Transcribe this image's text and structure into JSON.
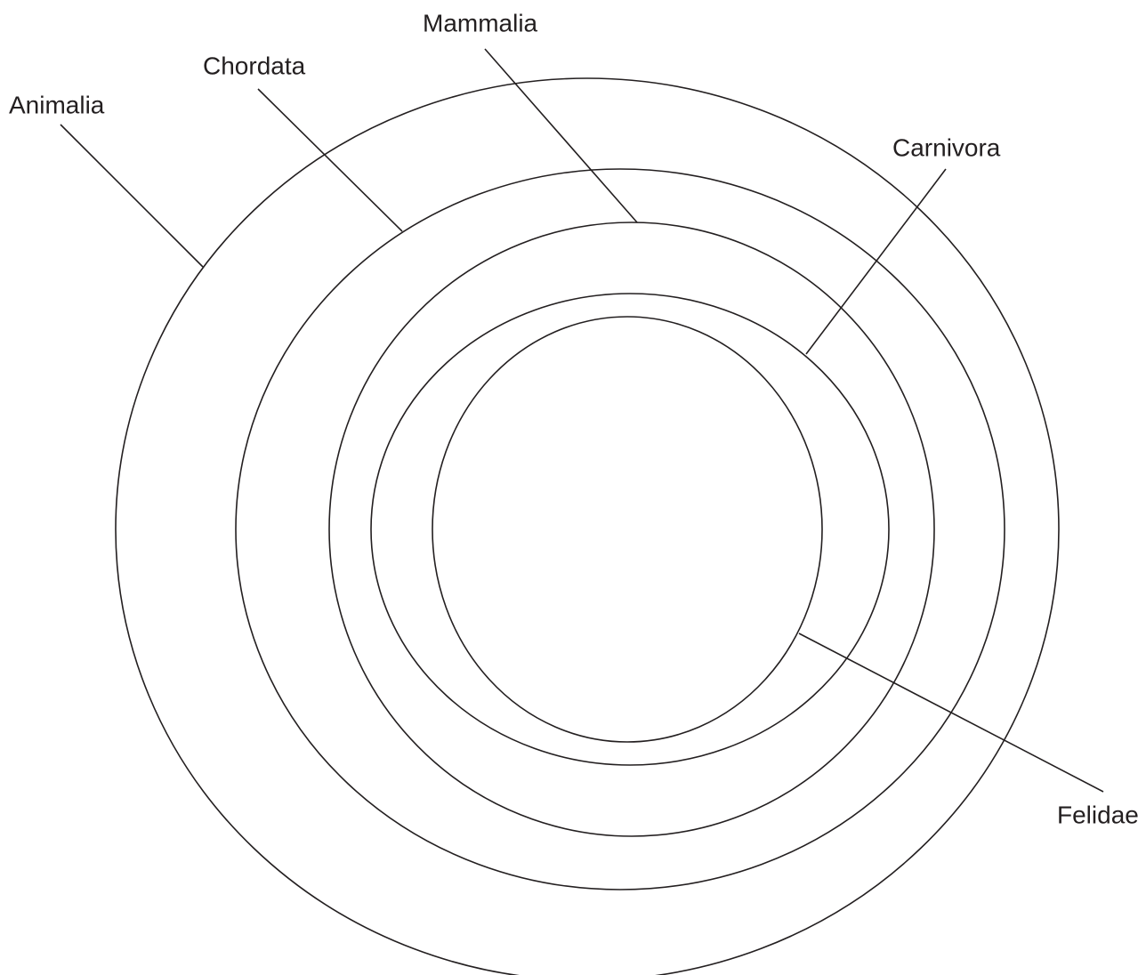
{
  "nodes": [
    {
      "label": "Animalia"
    },
    {
      "label": "Chordata"
    },
    {
      "label": "Mammalia"
    },
    {
      "label": "Carnivora"
    },
    {
      "label": "Felidae"
    }
  ]
}
